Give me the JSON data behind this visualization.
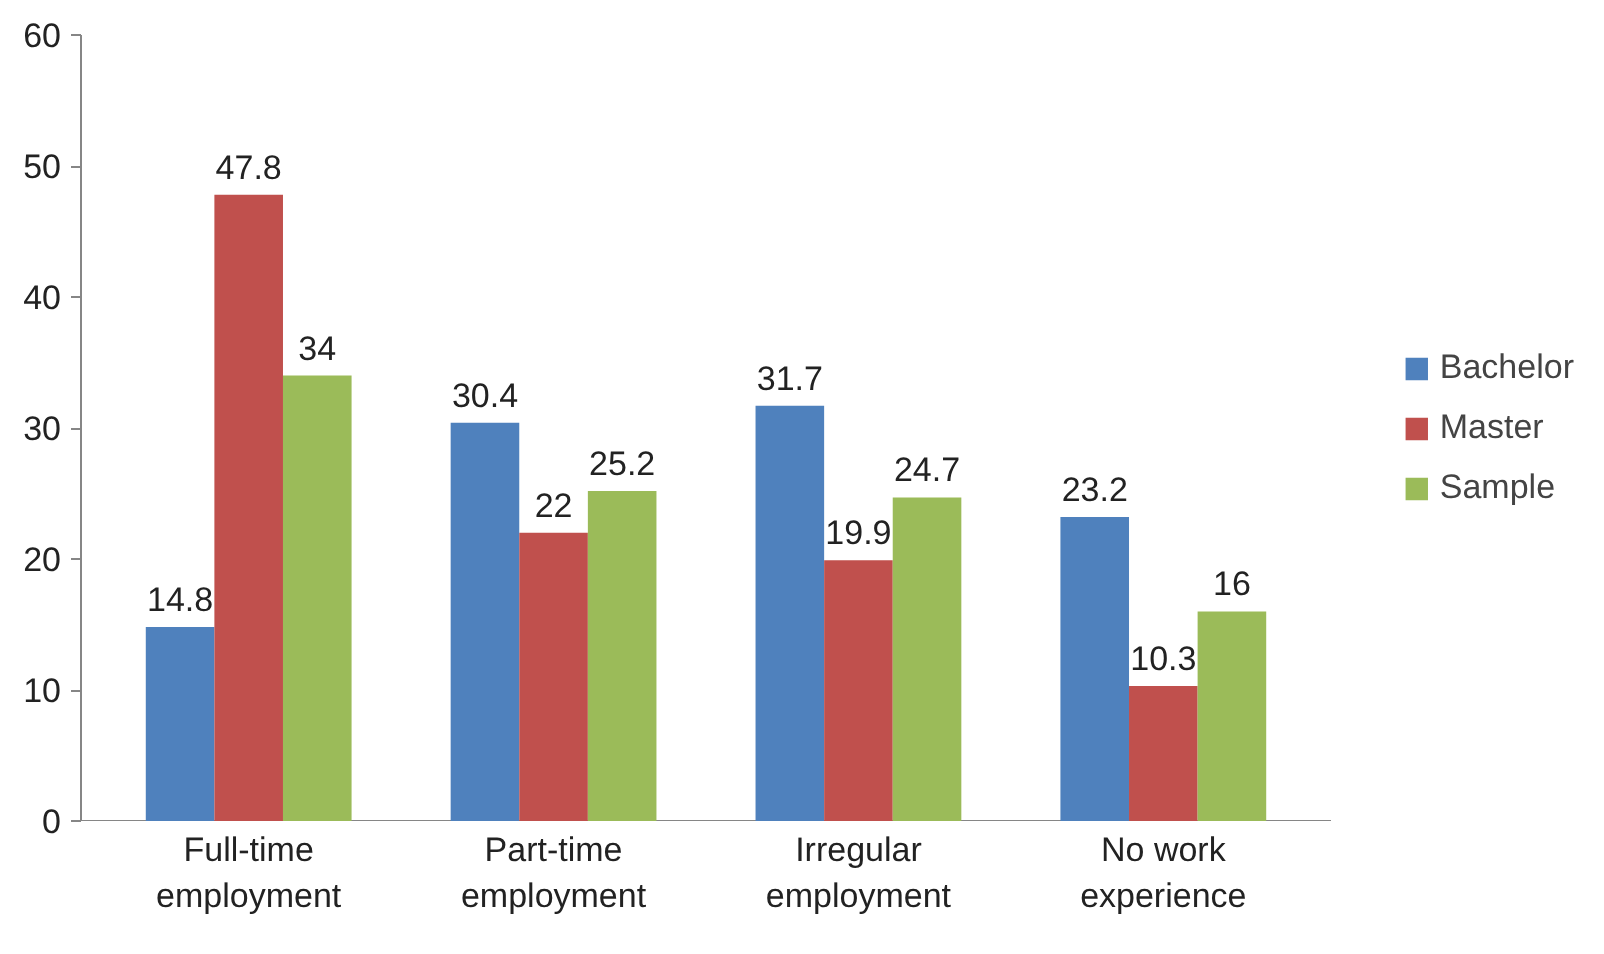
{
  "chart_data": {
    "type": "bar",
    "categories": [
      "Full-time employment",
      "Part-time employment",
      "Irregular employment",
      "No work experience"
    ],
    "series": [
      {
        "name": "Bachelor",
        "color": "#4f81bd",
        "values": [
          14.8,
          30.4,
          31.7,
          23.2
        ]
      },
      {
        "name": "Master",
        "color": "#c0504d",
        "values": [
          47.8,
          22,
          19.9,
          10.3
        ]
      },
      {
        "name": "Sample",
        "color": "#9bbb59",
        "values": [
          34,
          25.2,
          24.7,
          16
        ]
      }
    ],
    "ylim": [
      0,
      60
    ],
    "yticks": [
      0,
      10,
      20,
      30,
      40,
      50,
      60
    ],
    "grid": false,
    "legend": "right",
    "data_labels": true
  }
}
